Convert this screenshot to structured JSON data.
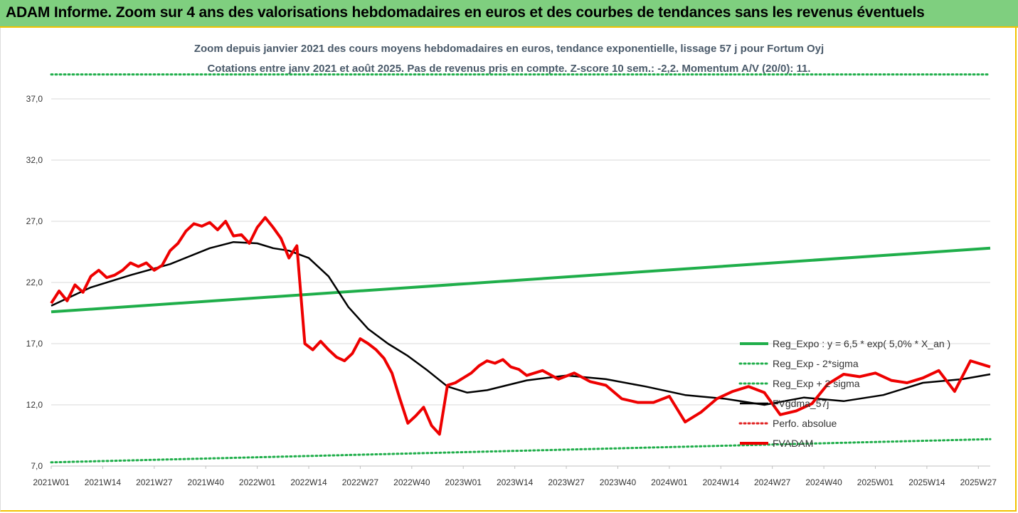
{
  "banner": {
    "title": "ADAM Informe. Zoom sur 4 ans des valorisations hebdomadaires en euros et des courbes de tendances sans les revenus éventuels"
  },
  "chart_data": {
    "type": "line",
    "title": "Zoom depuis janvier 2021 des cours moyens hebdomadaires en euros, tendance exponentielle, lissage 57 j pour Fortum Oyj",
    "subtitle": "Cotations entre janv 2021 et août 2025.  Pas de revenus pris en compte. Z-score 10 sem.: -2,2. Momentum A/V (20/0): 11.",
    "ylim": [
      7.0,
      37.0
    ],
    "yticks": [
      "7,0",
      "12,0",
      "17,0",
      "22,0",
      "27,0",
      "32,0",
      "37,0"
    ],
    "ytick_values": [
      7,
      12,
      17,
      22,
      27,
      32,
      37
    ],
    "xticks": [
      "2021W01",
      "2021W14",
      "2021W27",
      "2021W40",
      "2022W01",
      "2022W14",
      "2022W27",
      "2022W40",
      "2023W01",
      "2023W14",
      "2023W27",
      "2023W40",
      "2024W01",
      "2024W14",
      "2024W27",
      "2024W40",
      "2025W01",
      "2025W14",
      "2025W27"
    ],
    "x_weeks": 238,
    "grid": "horizontal",
    "legend_position": "right",
    "colors": {
      "reg_expo": "#1fae4a",
      "sigma": "#1fae4a",
      "fvgdma": "#000000",
      "perfo": "#e02020",
      "fvadam": "#ee0000",
      "top_dotted": "#1fae4a"
    },
    "series": [
      {
        "name": "Reg_Expo : y = 6,5 * exp( 5,0% *  X_an )",
        "style": "solid-thick",
        "x": [
          0,
          237
        ],
        "values": [
          19.6,
          24.8
        ]
      },
      {
        "name": "Reg_Exp - 2*sigma",
        "style": "dotted",
        "x": [
          0,
          237
        ],
        "values": [
          7.3,
          9.2
        ]
      },
      {
        "name": "Reg_Exp + 2 sigma",
        "style": "dotted",
        "x": [
          0,
          237
        ],
        "values": [
          39.0,
          39.0
        ]
      },
      {
        "name": "FVgdma_57j",
        "style": "solid",
        "x": [
          0,
          10,
          20,
          30,
          40,
          46,
          52,
          56,
          60,
          65,
          70,
          75,
          80,
          85,
          90,
          95,
          100,
          105,
          110,
          120,
          130,
          140,
          150,
          160,
          170,
          180,
          190,
          200,
          210,
          220,
          230,
          237
        ],
        "values": [
          20.1,
          21.6,
          22.6,
          23.5,
          24.8,
          25.3,
          25.2,
          24.8,
          24.6,
          24.0,
          22.5,
          20.0,
          18.2,
          17.0,
          16.0,
          14.8,
          13.5,
          13.0,
          13.2,
          14.0,
          14.4,
          14.1,
          13.5,
          12.8,
          12.5,
          12.0,
          12.6,
          12.3,
          12.8,
          13.8,
          14.1,
          14.5
        ]
      },
      {
        "name": "Perfo. absolue",
        "style": "dotted"
      },
      {
        "name": "FVADAM",
        "style": "solid-thick",
        "x": [
          0,
          2,
          4,
          6,
          8,
          10,
          12,
          14,
          16,
          18,
          20,
          22,
          24,
          26,
          28,
          30,
          32,
          34,
          36,
          38,
          40,
          42,
          44,
          46,
          48,
          50,
          52,
          54,
          56,
          58,
          60,
          62,
          64,
          66,
          68,
          70,
          72,
          74,
          76,
          78,
          80,
          82,
          84,
          86,
          88,
          90,
          92,
          94,
          96,
          98,
          100,
          102,
          104,
          106,
          108,
          110,
          112,
          114,
          116,
          118,
          120,
          124,
          128,
          132,
          136,
          140,
          144,
          148,
          152,
          156,
          160,
          164,
          168,
          172,
          176,
          180,
          184,
          188,
          192,
          196,
          200,
          204,
          208,
          212,
          216,
          220,
          224,
          228,
          232,
          237
        ],
        "values": [
          20.3,
          21.3,
          20.5,
          21.8,
          21.2,
          22.5,
          23.0,
          22.4,
          22.6,
          23.0,
          23.6,
          23.3,
          23.6,
          23.0,
          23.4,
          24.6,
          25.2,
          26.2,
          26.8,
          26.6,
          26.9,
          26.3,
          27.0,
          25.8,
          25.9,
          25.2,
          26.5,
          27.3,
          26.5,
          25.6,
          24.0,
          25.0,
          17.0,
          16.5,
          17.2,
          16.5,
          15.9,
          15.6,
          16.2,
          17.4,
          17.0,
          16.5,
          15.8,
          14.6,
          12.5,
          10.5,
          11.1,
          11.8,
          10.3,
          9.6,
          13.6,
          13.8,
          14.2,
          14.6,
          15.2,
          15.6,
          15.4,
          15.7,
          15.1,
          14.9,
          14.4,
          14.8,
          14.1,
          14.6,
          13.9,
          13.6,
          12.5,
          12.2,
          12.2,
          12.7,
          10.6,
          11.4,
          12.5,
          13.1,
          13.5,
          13.0,
          11.2,
          11.5,
          12.1,
          13.7,
          14.5,
          14.3,
          14.6,
          14.0,
          13.8,
          14.2,
          14.8,
          13.1,
          15.6,
          15.1
        ]
      }
    ]
  }
}
